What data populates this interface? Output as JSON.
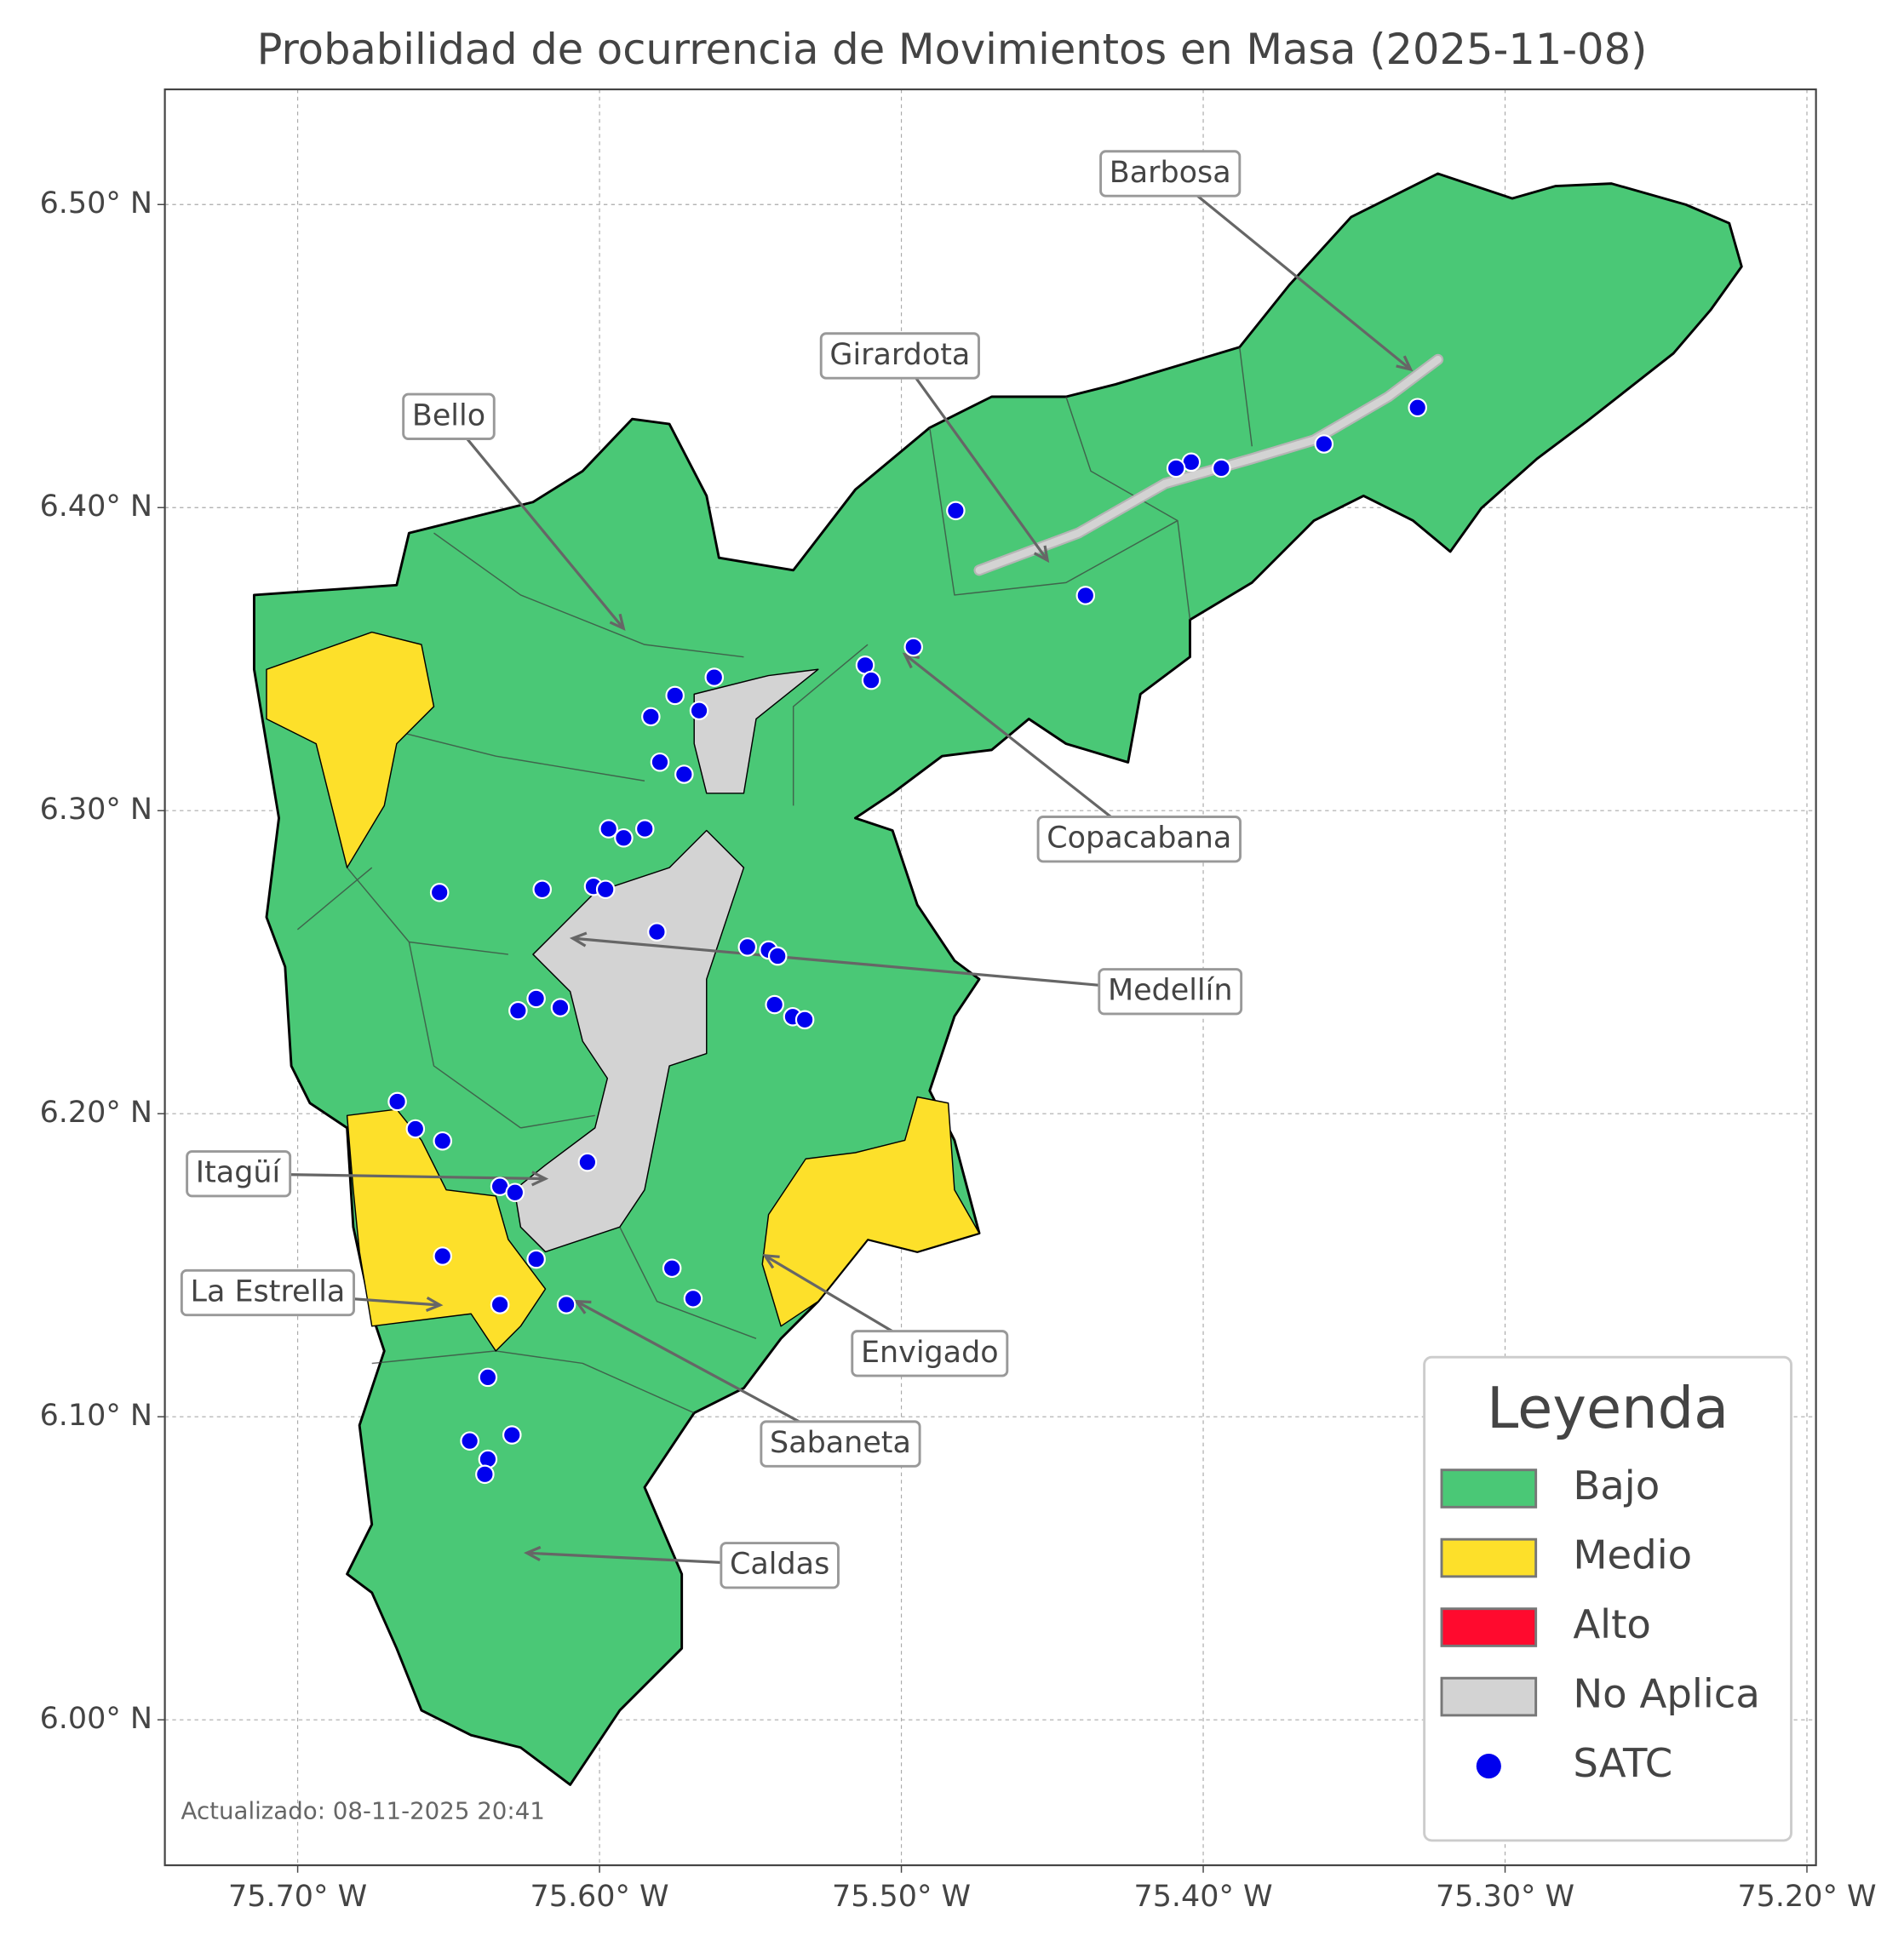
{
  "map": {
    "type": "map",
    "title": "Probabilidad de ocurrencia de Movimientos en Masa (2025-11-08)",
    "xlim": [
      -75.744,
      -75.197
    ],
    "ylim": [
      5.952,
      6.538
    ],
    "xticks": [
      {
        "value": -75.7,
        "label": "75.70° W"
      },
      {
        "value": -75.6,
        "label": "75.60° W"
      },
      {
        "value": -75.5,
        "label": "75.50° W"
      },
      {
        "value": -75.4,
        "label": "75.40° W"
      },
      {
        "value": -75.3,
        "label": "75.30° W"
      },
      {
        "value": -75.2,
        "label": "75.20° W"
      }
    ],
    "yticks": [
      {
        "value": 6.0,
        "label": "6.00° N"
      },
      {
        "value": 6.1,
        "label": "6.10° N"
      },
      {
        "value": 6.2,
        "label": "6.20° N"
      },
      {
        "value": 6.3,
        "label": "6.30° N"
      },
      {
        "value": 6.4,
        "label": "6.40° N"
      },
      {
        "value": 6.5,
        "label": "6.50° N"
      }
    ],
    "grid": true,
    "points": {
      "name": "SATC",
      "color": "#0000ee",
      "lon": [
        -75.329,
        -75.36,
        -75.394,
        -75.404,
        -75.409,
        -75.482,
        -75.439,
        -75.496,
        -75.512,
        -75.51,
        -75.562,
        -75.575,
        -75.583,
        -75.567,
        -75.58,
        -75.572,
        -75.597,
        -75.592,
        -75.585,
        -75.653,
        -75.619,
        -75.602,
        -75.598,
        -75.581,
        -75.551,
        -75.544,
        -75.541,
        -75.542,
        -75.536,
        -75.532,
        -75.621,
        -75.627,
        -75.613,
        -75.667,
        -75.661,
        -75.652,
        -75.604,
        -75.633,
        -75.628,
        -75.621,
        -75.652,
        -75.576,
        -75.569,
        -75.633,
        -75.611,
        -75.637,
        -75.643,
        -75.629,
        -75.637,
        -75.638
      ],
      "lat": [
        6.433,
        6.421,
        6.413,
        6.415,
        6.413,
        6.399,
        6.371,
        6.354,
        6.348,
        6.343,
        6.344,
        6.338,
        6.331,
        6.333,
        6.316,
        6.312,
        6.294,
        6.291,
        6.294,
        6.273,
        6.274,
        6.275,
        6.274,
        6.26,
        6.255,
        6.254,
        6.252,
        6.236,
        6.232,
        6.231,
        6.238,
        6.234,
        6.235,
        6.204,
        6.195,
        6.191,
        6.184,
        6.176,
        6.174,
        6.152,
        6.153,
        6.149,
        6.139,
        6.137,
        6.137,
        6.113,
        6.092,
        6.094,
        6.086,
        6.081
      ]
    },
    "annotations": [
      "Barbosa",
      "Girardota",
      "Bello",
      "Copacabana",
      "Medellín",
      "Itagüí",
      "La Estrella",
      "Envigado",
      "Sabaneta",
      "Caldas"
    ],
    "legend": {
      "title": "Leyenda",
      "loc": "lower right",
      "entries": [
        {
          "label": "Bajo",
          "color": "#4ac876"
        },
        {
          "label": "Medio",
          "color": "#fde02a"
        },
        {
          "label": "Alto",
          "color": "#ff0a2e"
        },
        {
          "label": "No Aplica",
          "color": "#d3d3d3"
        }
      ]
    },
    "footnote": "Actualizado: 08-11-2025 20:41"
  }
}
